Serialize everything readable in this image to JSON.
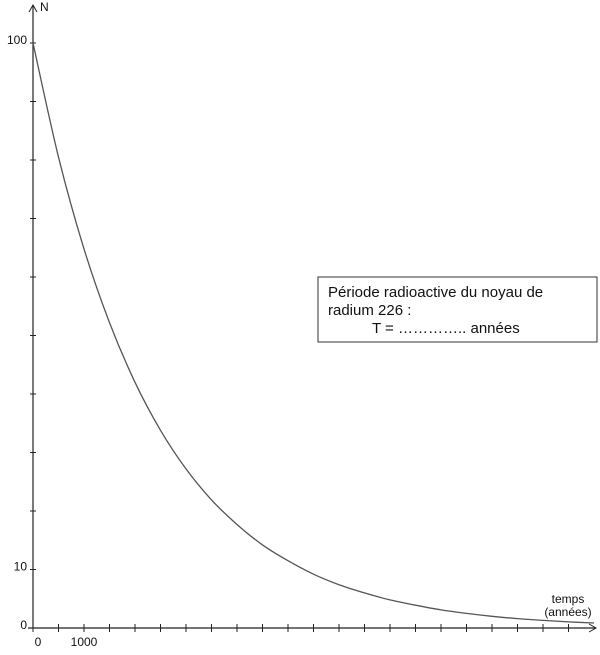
{
  "chart_data": {
    "type": "line",
    "ylabel": "N",
    "xlabel": [
      "temps",
      "(années)"
    ],
    "annotation": [
      "Période radioactive du noyau de",
      "radium 226 :",
      "T = ………….. années"
    ],
    "x": [
      0,
      500,
      1000,
      1500,
      2000,
      2500,
      3000,
      3500,
      4000,
      4500,
      5000,
      5500,
      6000,
      6500,
      7000,
      7500,
      8000,
      8500,
      9000,
      9500,
      10000,
      10500,
      11000
    ],
    "values": [
      100,
      80.5,
      64.8,
      52.2,
      42.0,
      33.8,
      27.2,
      21.9,
      17.7,
      14.2,
      11.5,
      9.2,
      7.4,
      6.0,
      4.8,
      3.9,
      3.1,
      2.5,
      2.0,
      1.6,
      1.3,
      1.05,
      0.85
    ],
    "color": "#555555",
    "xlim": [
      0,
      11000
    ],
    "ylim": [
      0,
      100
    ],
    "xticks": [
      0,
      {
        "value": 500,
        "label": null
      },
      1000,
      {
        "value": 1500,
        "label": null
      },
      {
        "value": 2000,
        "label": null
      },
      {
        "value": 2500,
        "label": null
      },
      {
        "value": 3000,
        "label": null
      },
      {
        "value": 3500,
        "label": null
      },
      {
        "value": 4000,
        "label": null
      },
      {
        "value": 4500,
        "label": null
      },
      {
        "value": 5000,
        "label": null
      },
      {
        "value": 5500,
        "label": null
      },
      {
        "value": 6000,
        "label": null
      },
      {
        "value": 6500,
        "label": null
      },
      {
        "value": 7000,
        "label": null
      },
      {
        "value": 7500,
        "label": null
      },
      {
        "value": 8000,
        "label": null
      },
      {
        "value": 8500,
        "label": null
      },
      {
        "value": 9000,
        "label": null
      },
      {
        "value": 9500,
        "label": null
      },
      {
        "value": 10000,
        "label": null
      },
      {
        "value": 10500,
        "label": null
      }
    ],
    "yticks": [
      0,
      10,
      {
        "value": 20,
        "label": null
      },
      {
        "value": 30,
        "label": null
      },
      {
        "value": 40,
        "label": null
      },
      {
        "value": 50,
        "label": null
      },
      {
        "value": 60,
        "label": null
      },
      {
        "value": 70,
        "label": null
      },
      {
        "value": 80,
        "label": null
      },
      {
        "value": 90,
        "label": null
      },
      100
    ]
  }
}
